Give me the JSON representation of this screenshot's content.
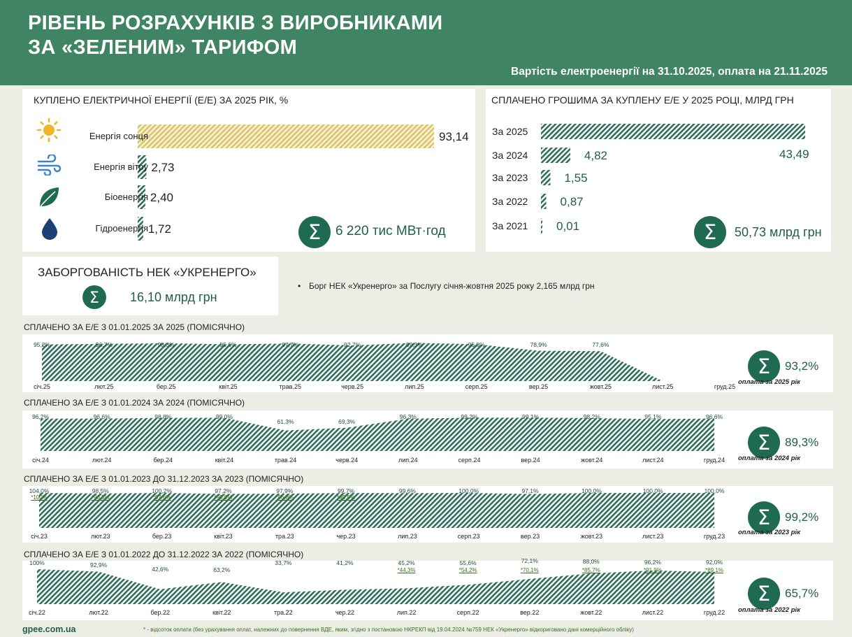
{
  "header": {
    "title_line1": "РІВЕНЬ РОЗРАХУНКІВ З ВИРОБНИКАМИ",
    "title_line2": "ЗА «ЗЕЛЕНИМ» ТАРИФОМ",
    "subtitle": "Вартість електроенергії на 31.10.2025, оплата на 21.11.2025"
  },
  "energy": {
    "title": "КУПЛЕНО ЕЛЕКТРИЧНОЇ ЕНЕРГІЇ (Е/Е) ЗА 2025 РІК, %",
    "total": "6 220 тис МВт·год"
  },
  "paid": {
    "title": "СПЛАЧЕНО ГРОШИМА ЗА КУПЛЕНУ Е/Е У 2025 РОЦІ, МЛРД ГРН",
    "total": "50,73 млрд грн"
  },
  "debt": {
    "title": "ЗАБОРГОВАНІСТЬ НЕК «УКРЕНЕРГО»",
    "value": "16,10 млрд грн",
    "bullet": "Борг НЕК «Укренерго» за Послугу січня-жовтня 2025 року 2,165 млрд грн"
  },
  "colors": {
    "header": "#3f8563",
    "accent": "#1e6a52",
    "solar": "#e8d488",
    "hatch": "#2f6e5a"
  },
  "chart_data": [
    {
      "type": "bar",
      "title": "КУПЛЕНО ЕЛЕКТРИЧНОЇ ЕНЕРГІЇ (Е/Е) ЗА 2025 РІК, %",
      "categories": [
        "Енергія сонця",
        "Енергія вітру",
        "Біоенергія",
        "Гідроенергія"
      ],
      "icons": [
        "sun-icon",
        "wind-icon",
        "leaf-icon",
        "water-drop-icon"
      ],
      "values": [
        93.14,
        2.73,
        2.4,
        1.72
      ],
      "labels": [
        "93,14",
        "2,73",
        "2,40",
        "1,72"
      ],
      "xlim": [
        0,
        100
      ]
    },
    {
      "type": "bar",
      "title": "СПЛАЧЕНО ГРОШИМА ЗА КУПЛЕНУ Е/Е У 2025 РОЦІ, МЛРД ГРН",
      "categories": [
        "За 2025",
        "За 2024",
        "За 2023",
        "За 2022",
        "За 2021"
      ],
      "values": [
        43.49,
        4.82,
        1.55,
        0.87,
        0.01
      ],
      "labels": [
        "43,49",
        "4,82",
        "1,55",
        "0,87",
        "0,01"
      ],
      "xlim": [
        0,
        43.49
      ]
    },
    {
      "type": "area",
      "title": "СПЛАЧЕНО ЗА Е/Е З 01.01.2025 ЗА 2025  (ПОМІСЯЧНО)",
      "categories": [
        "січ.25",
        "лют.25",
        "бер.25",
        "квіт.25",
        "трав.25",
        "черв.25",
        "лип.25",
        "серп.25",
        "вер.25",
        "жовт.25",
        "лист.25",
        "груд.25"
      ],
      "values": [
        95.2,
        96.7,
        98.3,
        95.6,
        97.7,
        92.7,
        99.3,
        95.8,
        78.9,
        77.6,
        null,
        null
      ],
      "labels": [
        "95,2%",
        "96,7%",
        "98,3%",
        "95,6%",
        "97,7%",
        "92,7%",
        "99,3%",
        "95,8%",
        "78,9%",
        "77,6%",
        "",
        ""
      ],
      "total": "93,2%",
      "note": "оплата за 2025 рік"
    },
    {
      "type": "area",
      "title": "СПЛАЧЕНО ЗА Е/Е З 01.01.2024 ЗА 2024  (ПОМІСЯЧНО)",
      "categories": [
        "січ.24",
        "лют.24",
        "бер.24",
        "квіт.24",
        "трав.24",
        "черв.24",
        "лип.24",
        "серп.24",
        "вер.24",
        "жовт.24",
        "лист.24",
        "груд.24"
      ],
      "values": [
        96.2,
        96.6,
        98.8,
        99.0,
        61.3,
        69.3,
        96.3,
        99.2,
        99.1,
        98.2,
        95.1,
        96.6
      ],
      "labels": [
        "96,2%",
        "96,6%",
        "98,8%",
        "99,0%",
        "61,3%",
        "69,3%",
        "96,3%",
        "99,2%",
        "99,1%",
        "98,2%",
        "95,1%",
        "96,6%"
      ],
      "total": "89,3%",
      "note": "оплата за 2024 рік"
    },
    {
      "type": "area",
      "title": "СПЛАЧЕНО ЗА Е/Е З 01.01.2023 ДО 31.12.2023 ЗА 2023  (ПОМІСЯЧНО)",
      "categories": [
        "січ.23",
        "лют.23",
        "бер.23",
        "квіт.23",
        "тра.23",
        "чер.23",
        "лип.23",
        "серп.23",
        "вер.23",
        "жовт.23",
        "лист.23",
        "груд.23"
      ],
      "values": [
        104.0,
        98.5,
        100.2,
        97.2,
        97.9,
        99.7,
        99.6,
        100.0,
        97.1,
        100.0,
        100.0,
        100.0
      ],
      "labels": [
        "104,0%",
        "98,5%",
        "100,2%",
        "97,2%",
        "97,9%",
        "99,7%",
        "99,6%",
        "100,0%",
        "97,1%",
        "100,0%",
        "100,0%",
        "100,0%"
      ],
      "labels2": [
        "*100%",
        "*96,5%",
        "*97,6%",
        "*95,8%",
        "*96,8%",
        "*99,5%",
        "",
        "",
        "",
        "",
        "",
        ""
      ],
      "total": "99,2%",
      "note": "оплата за 2023 рік"
    },
    {
      "type": "area",
      "title": "СПЛАЧЕНО ЗА Е/Е З 01.01.2022 ДО 31.12.2022 ЗА 2022 (ПОМІСЯЧНО)",
      "categories": [
        "січ.22",
        "лют.22",
        "бер.22",
        "квіт.22",
        "тра.22",
        "чер.22",
        "лип.22",
        "серп.22",
        "вер.22",
        "жовт.22",
        "лист.22",
        "груд.22"
      ],
      "values": [
        100,
        92.9,
        42.6,
        63.2,
        33.7,
        41.2,
        45.2,
        55.6,
        72.1,
        88.0,
        96.2,
        92.0
      ],
      "labels": [
        "100%",
        "92,9%",
        "42,6%",
        "63,2%",
        "33,7%",
        "41,2%",
        "45,2%",
        "55,6%",
        "72,1%",
        "88,0%",
        "96,2%",
        "92,0%"
      ],
      "labels2": [
        "",
        "",
        "",
        "",
        "",
        "",
        "*44,3%",
        "*54,2%",
        "*70,1%",
        "*85,7%",
        "*91,9%",
        "*89,1%"
      ],
      "total": "65,7%",
      "note": "оплата за 2022 рік"
    }
  ],
  "footer": {
    "site": "gpee.com.ua",
    "note": "* - відсоток оплати (без урахування оплат, належних до повернення ВДЕ, яким, згідно з постановою НКРЕКП від 19.04.2024  №759 НЕК «Укренерго» відкориговано дані комерційного обліку)"
  }
}
